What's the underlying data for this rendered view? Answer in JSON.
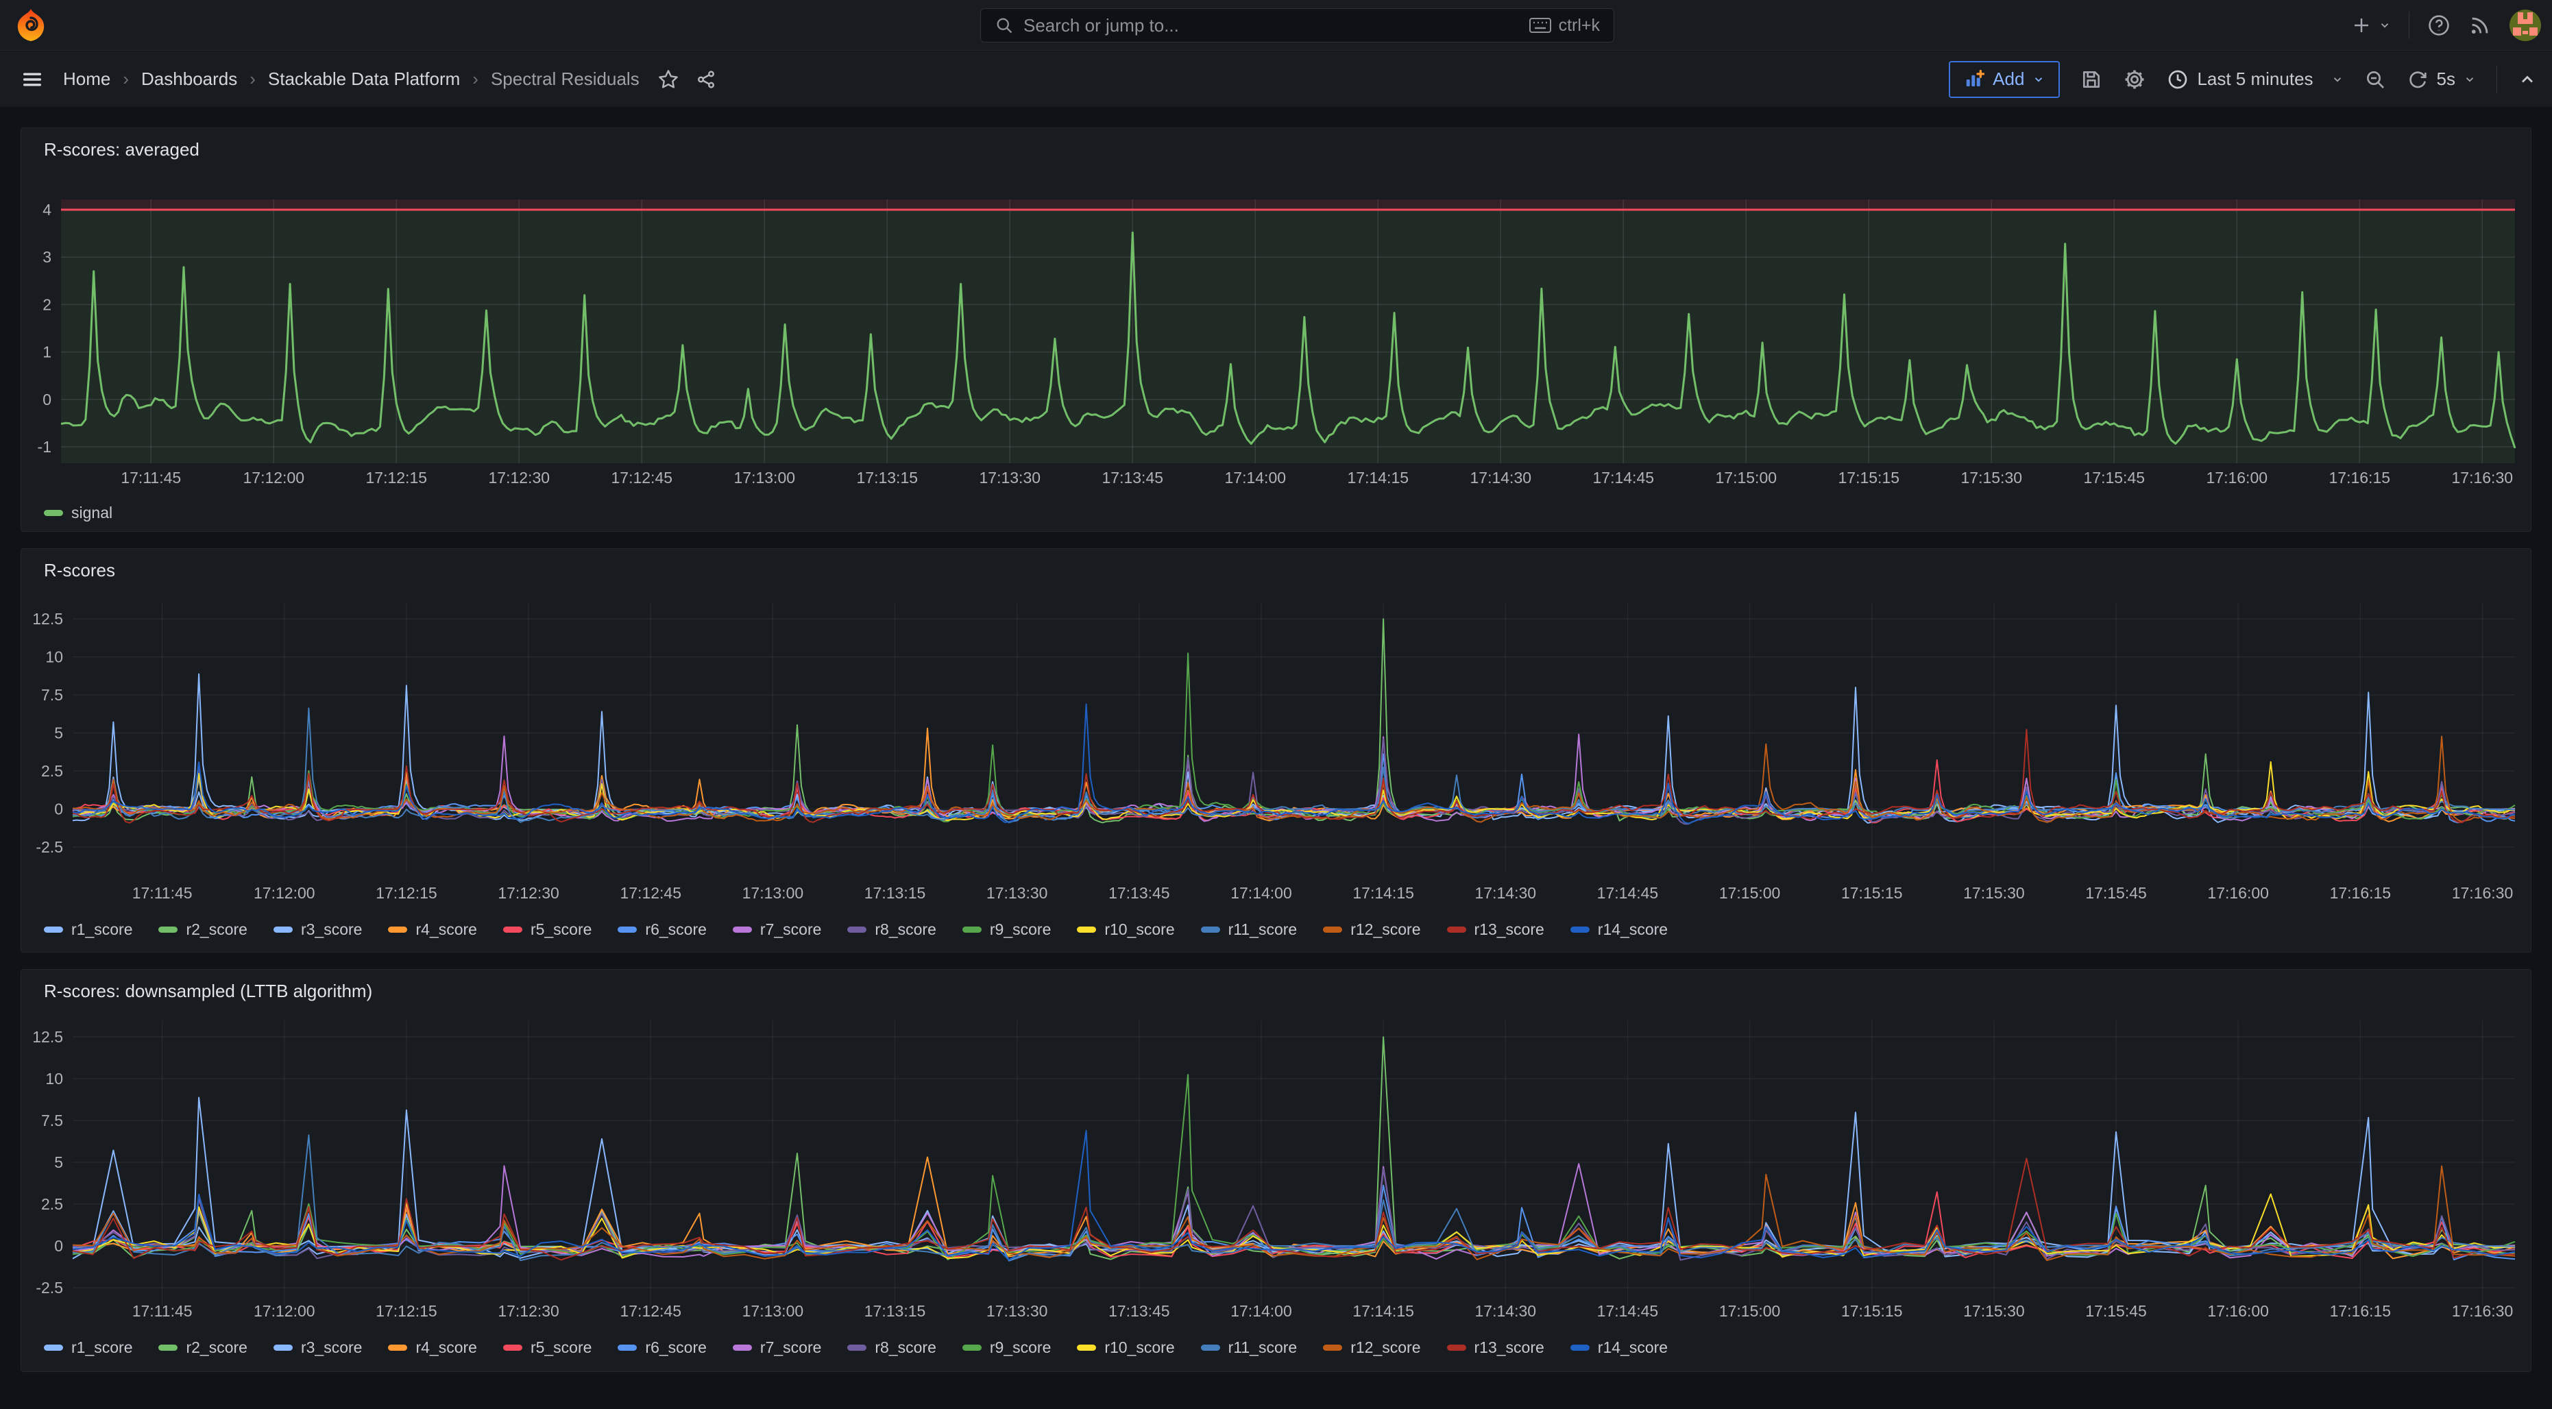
{
  "nav": {
    "search": {
      "placeholder": "Search or jump to...",
      "shortcut": "ctrl+k"
    }
  },
  "toolbar": {
    "breadcrumb": [
      {
        "label": "Home"
      },
      {
        "label": "Dashboards"
      },
      {
        "label": "Stackable Data Platform"
      },
      {
        "label": "Spectral Residuals"
      }
    ],
    "add_label": "Add",
    "time_range": "Last 5 minutes",
    "refresh_interval": "5s"
  },
  "chart_data": [
    {
      "type": "line",
      "title": "R-scores: averaged",
      "x_ticks": [
        "17:11:45",
        "17:12:00",
        "17:12:15",
        "17:12:30",
        "17:12:45",
        "17:13:00",
        "17:13:15",
        "17:13:30",
        "17:13:45",
        "17:14:00",
        "17:14:15",
        "17:14:30",
        "17:14:45",
        "17:15:00",
        "17:15:15",
        "17:15:30",
        "17:15:45",
        "17:16:00",
        "17:16:15",
        "17:16:30"
      ],
      "x_window_seconds": 300,
      "x_first_tick_offset_s": 11,
      "x_tick_interval_s": 15,
      "y_ticks": [
        -1,
        0,
        1,
        2,
        3,
        4
      ],
      "ylim": [
        -1.3,
        4.2
      ],
      "grid": true,
      "legend_position": "bottom",
      "threshold": {
        "value": 4,
        "line_color": "#F2495C",
        "fill_above": "rgba(242,73,92,0.12)",
        "fill_below": "rgba(115,191,105,0.10)"
      },
      "series": [
        {
          "name": "signal",
          "color": "#73BF69"
        }
      ],
      "baseline_level": -0.45,
      "spikes": [
        [
          4,
          3.2
        ],
        [
          15,
          2.95
        ],
        [
          28,
          2.95
        ],
        [
          40,
          3.05
        ],
        [
          52,
          2.1
        ],
        [
          64,
          2.85
        ],
        [
          76,
          1.45
        ],
        [
          84,
          0.95
        ],
        [
          88.5,
          2.0
        ],
        [
          99,
          1.9
        ],
        [
          110,
          2.55
        ],
        [
          121.5,
          1.5
        ],
        [
          131,
          3.7
        ],
        [
          143,
          1.35
        ],
        [
          152,
          2.2
        ],
        [
          163,
          2.35
        ],
        [
          172,
          1.5
        ],
        [
          181,
          2.95
        ],
        [
          190,
          1.45
        ],
        [
          199,
          2.1
        ],
        [
          208,
          1.65
        ],
        [
          218,
          2.5
        ],
        [
          226,
          1.4
        ],
        [
          233,
          0.9
        ],
        [
          245,
          3.85
        ],
        [
          256,
          2.6
        ],
        [
          266,
          1.4
        ],
        [
          274,
          2.9
        ],
        [
          283,
          2.4
        ],
        [
          291,
          1.8
        ],
        [
          298,
          1.6
        ]
      ]
    },
    {
      "type": "line",
      "title": "R-scores",
      "x_ticks": [
        "17:11:45",
        "17:12:00",
        "17:12:15",
        "17:12:30",
        "17:12:45",
        "17:13:00",
        "17:13:15",
        "17:13:30",
        "17:13:45",
        "17:14:00",
        "17:14:15",
        "17:14:30",
        "17:14:45",
        "17:15:00",
        "17:15:15",
        "17:15:30",
        "17:15:45",
        "17:16:00",
        "17:16:15",
        "17:16:30"
      ],
      "x_window_seconds": 300,
      "x_first_tick_offset_s": 11,
      "x_tick_interval_s": 15,
      "y_ticks": [
        -2.5,
        0,
        2.5,
        5,
        7.5,
        10,
        12.5
      ],
      "ylim": [
        -4.2,
        13.5
      ],
      "grid": true,
      "legend_position": "bottom",
      "series": [
        {
          "name": "r1_score",
          "color": "#8AB8FF"
        },
        {
          "name": "r2_score",
          "color": "#73BF69"
        },
        {
          "name": "r3_score",
          "color": "#8AB8FF"
        },
        {
          "name": "r4_score",
          "color": "#FF9830"
        },
        {
          "name": "r5_score",
          "color": "#F2495C"
        },
        {
          "name": "r6_score",
          "color": "#5794F2"
        },
        {
          "name": "r7_score",
          "color": "#B877D9"
        },
        {
          "name": "r8_score",
          "color": "#705DA0"
        },
        {
          "name": "r9_score",
          "color": "#56A64B"
        },
        {
          "name": "r10_score",
          "color": "#FADE2A"
        },
        {
          "name": "r11_score",
          "color": "#447EBC"
        },
        {
          "name": "r12_score",
          "color": "#C15C17"
        },
        {
          "name": "r13_score",
          "color": "#AD2E24"
        },
        {
          "name": "r14_score",
          "color": "#1F60C4"
        }
      ],
      "events": [
        [
          5,
          5.7,
          0
        ],
        [
          15.5,
          8.8,
          2
        ],
        [
          22,
          2.6,
          1
        ],
        [
          29,
          7.0,
          10
        ],
        [
          41,
          8.1,
          0
        ],
        [
          53,
          5.0,
          6
        ],
        [
          65,
          6.3,
          2
        ],
        [
          77,
          2.2,
          3
        ],
        [
          89,
          5.8,
          1
        ],
        [
          105,
          5.6,
          3
        ],
        [
          113,
          4.6,
          8
        ],
        [
          124.5,
          7.0,
          13
        ],
        [
          137,
          10.2,
          8
        ],
        [
          145,
          2.8,
          7
        ],
        [
          161,
          12.9,
          1
        ],
        [
          170,
          2.5,
          10
        ],
        [
          178,
          2.7,
          5
        ],
        [
          185,
          5.1,
          6
        ],
        [
          196,
          6.4,
          0
        ],
        [
          208,
          4.2,
          11
        ],
        [
          219,
          8.3,
          2
        ],
        [
          229,
          3.5,
          4
        ],
        [
          240,
          5.5,
          12
        ],
        [
          251,
          6.8,
          0
        ],
        [
          262,
          4.0,
          1
        ],
        [
          270,
          3.4,
          9
        ],
        [
          282,
          7.8,
          0
        ],
        [
          291,
          5.2,
          11
        ]
      ]
    },
    {
      "type": "line",
      "title": "R-scores: downsampled (LTTB algorithm)",
      "downsample": "LTTB",
      "sample_step_s": 2.5,
      "x_ticks": [
        "17:11:45",
        "17:12:00",
        "17:12:15",
        "17:12:30",
        "17:12:45",
        "17:13:00",
        "17:13:15",
        "17:13:30",
        "17:13:45",
        "17:14:00",
        "17:14:15",
        "17:14:30",
        "17:14:45",
        "17:15:00",
        "17:15:15",
        "17:15:30",
        "17:15:45",
        "17:16:00",
        "17:16:15",
        "17:16:30"
      ],
      "x_window_seconds": 300,
      "x_first_tick_offset_s": 11,
      "x_tick_interval_s": 15,
      "y_ticks": [
        -2.5,
        0,
        2.5,
        5,
        7.5,
        10,
        12.5
      ],
      "ylim": [
        -4.2,
        13.5
      ],
      "grid": true,
      "legend_position": "bottom",
      "series": [
        {
          "name": "r1_score",
          "color": "#8AB8FF"
        },
        {
          "name": "r2_score",
          "color": "#73BF69"
        },
        {
          "name": "r3_score",
          "color": "#8AB8FF"
        },
        {
          "name": "r4_score",
          "color": "#FF9830"
        },
        {
          "name": "r5_score",
          "color": "#F2495C"
        },
        {
          "name": "r6_score",
          "color": "#5794F2"
        },
        {
          "name": "r7_score",
          "color": "#B877D9"
        },
        {
          "name": "r8_score",
          "color": "#705DA0"
        },
        {
          "name": "r9_score",
          "color": "#56A64B"
        },
        {
          "name": "r10_score",
          "color": "#FADE2A"
        },
        {
          "name": "r11_score",
          "color": "#447EBC"
        },
        {
          "name": "r12_score",
          "color": "#C15C17"
        },
        {
          "name": "r13_score",
          "color": "#AD2E24"
        },
        {
          "name": "r14_score",
          "color": "#1F60C4"
        }
      ],
      "events": [
        [
          5,
          5.7,
          0
        ],
        [
          15.5,
          8.8,
          2
        ],
        [
          22,
          2.6,
          1
        ],
        [
          29,
          7.0,
          10
        ],
        [
          41,
          8.1,
          0
        ],
        [
          53,
          5.0,
          6
        ],
        [
          65,
          6.3,
          2
        ],
        [
          77,
          2.2,
          3
        ],
        [
          89,
          5.8,
          1
        ],
        [
          105,
          5.6,
          3
        ],
        [
          113,
          4.6,
          8
        ],
        [
          124.5,
          7.0,
          13
        ],
        [
          137,
          10.2,
          8
        ],
        [
          145,
          2.8,
          7
        ],
        [
          161,
          12.9,
          1
        ],
        [
          170,
          2.5,
          10
        ],
        [
          178,
          2.7,
          5
        ],
        [
          185,
          5.1,
          6
        ],
        [
          196,
          6.4,
          0
        ],
        [
          208,
          4.2,
          11
        ],
        [
          219,
          8.3,
          2
        ],
        [
          229,
          3.5,
          4
        ],
        [
          240,
          5.5,
          12
        ],
        [
          251,
          6.8,
          0
        ],
        [
          262,
          4.0,
          1
        ],
        [
          270,
          3.4,
          9
        ],
        [
          282,
          7.8,
          0
        ],
        [
          291,
          5.2,
          11
        ]
      ]
    }
  ]
}
